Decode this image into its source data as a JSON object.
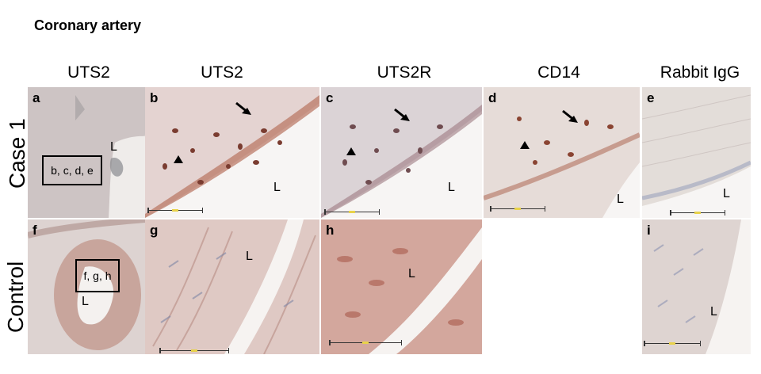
{
  "title": "Coronary artery",
  "columns": [
    "UTS2",
    "UTS2",
    "UTS2R",
    "CD14",
    "Rabbit IgG"
  ],
  "rows": [
    "Case 1",
    "Control"
  ],
  "panels": {
    "a": {
      "label": "a",
      "lumen": "L",
      "inset": "b, c, d, e"
    },
    "b": {
      "label": "b",
      "lumen": "L"
    },
    "c": {
      "label": "c",
      "lumen": "L"
    },
    "d": {
      "label": "d",
      "lumen": "L"
    },
    "e": {
      "label": "e",
      "lumen": "L"
    },
    "f": {
      "label": "f",
      "lumen": "L",
      "inset": "f, g, h"
    },
    "g": {
      "label": "g",
      "lumen": "L"
    },
    "h": {
      "label": "h",
      "lumen": "L"
    },
    "i": {
      "label": "i",
      "lumen": "L"
    }
  },
  "colors": {
    "tissue_pink": "#e6cfcf",
    "stain_brown": "#a4553f",
    "nuclei_blue": "#6f7fa8",
    "lumen_white": "#f6f4f2"
  }
}
